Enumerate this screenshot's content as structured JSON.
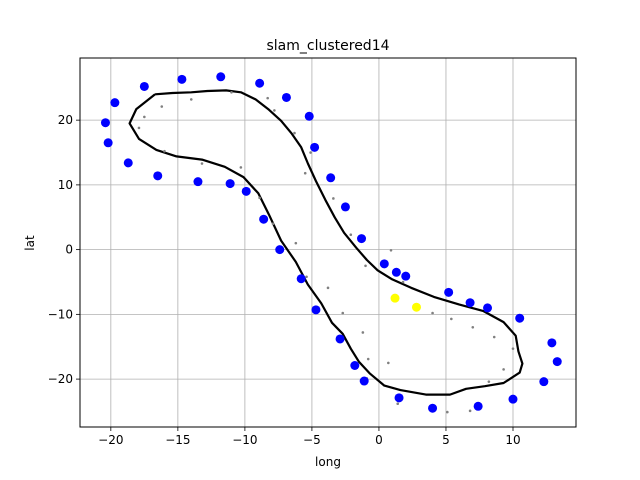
{
  "chart_data": {
    "type": "scatter",
    "title": "slam_clustered14",
    "xlabel": "long",
    "ylabel": "lat",
    "xlim": [
      -22.3,
      14.7
    ],
    "ylim": [
      -27.4,
      29.6
    ],
    "xticks": [
      -20,
      -15,
      -10,
      -5,
      0,
      5,
      10
    ],
    "yticks": [
      -20,
      -10,
      0,
      10,
      20
    ],
    "grid": true,
    "colors": {
      "landmarks": "#0000ff",
      "highlighted": "#ffff00",
      "trajectory": "#000000",
      "estimate_points": "#808080",
      "grid": "#b0b0b0"
    },
    "landmarks": [
      [
        -20.4,
        19.6
      ],
      [
        -20.2,
        16.5
      ],
      [
        -19.7,
        22.7
      ],
      [
        -18.7,
        13.4
      ],
      [
        -17.5,
        25.2
      ],
      [
        -16.5,
        11.4
      ],
      [
        -14.7,
        26.3
      ],
      [
        -13.5,
        10.5
      ],
      [
        -11.8,
        26.7
      ],
      [
        -11.1,
        10.2
      ],
      [
        -9.9,
        9.0
      ],
      [
        -8.9,
        25.7
      ],
      [
        -8.6,
        4.7
      ],
      [
        -6.9,
        23.5
      ],
      [
        -7.4,
        0.0
      ],
      [
        -5.8,
        -4.5
      ],
      [
        -5.2,
        20.6
      ],
      [
        -4.8,
        15.8
      ],
      [
        -4.7,
        -9.3
      ],
      [
        -3.6,
        11.1
      ],
      [
        -2.9,
        -13.8
      ],
      [
        -2.5,
        6.6
      ],
      [
        -1.8,
        -17.9
      ],
      [
        -1.3,
        1.7
      ],
      [
        -1.1,
        -20.3
      ],
      [
        0.4,
        -2.2
      ],
      [
        1.3,
        -3.5
      ],
      [
        1.5,
        -22.9
      ],
      [
        2.0,
        -4.1
      ],
      [
        4.0,
        -24.5
      ],
      [
        5.2,
        -6.6
      ],
      [
        6.8,
        -8.2
      ],
      [
        7.4,
        -24.2
      ],
      [
        8.1,
        -9.0
      ],
      [
        10.0,
        -23.1
      ],
      [
        10.5,
        -10.6
      ],
      [
        12.3,
        -20.4
      ],
      [
        12.9,
        -14.4
      ],
      [
        13.3,
        -17.3
      ]
    ],
    "highlighted": [
      [
        1.2,
        -7.5
      ],
      [
        2.8,
        -8.9
      ]
    ],
    "estimate_points": [
      [
        -17.9,
        18.8
      ],
      [
        -17.5,
        20.5
      ],
      [
        -16.0,
        15.2
      ],
      [
        -16.2,
        22.1
      ],
      [
        -14.0,
        23.2
      ],
      [
        -13.2,
        13.3
      ],
      [
        -11.0,
        24.3
      ],
      [
        -10.3,
        12.7
      ],
      [
        -8.3,
        23.4
      ],
      [
        -8.9,
        8.0
      ],
      [
        -7.8,
        21.5
      ],
      [
        -7.9,
        4.0
      ],
      [
        -6.3,
        18.0
      ],
      [
        -6.2,
        1.0
      ],
      [
        -5.5,
        11.8
      ],
      [
        -5.4,
        -4.2
      ],
      [
        -5.1,
        15.0
      ],
      [
        -3.8,
        -5.9
      ],
      [
        -3.4,
        7.9
      ],
      [
        -2.7,
        -9.8
      ],
      [
        -2.1,
        2.3
      ],
      [
        -1.2,
        -12.8
      ],
      [
        -0.8,
        -16.9
      ],
      [
        -1.0,
        -2.5
      ],
      [
        -0.9,
        -19.9
      ],
      [
        0.7,
        -17.5
      ],
      [
        0.9,
        -0.1
      ],
      [
        1.4,
        -23.8
      ],
      [
        1.8,
        -5.0
      ],
      [
        5.1,
        -25.1
      ],
      [
        4.0,
        -9.8
      ],
      [
        5.4,
        -10.7
      ],
      [
        6.8,
        -24.9
      ],
      [
        7.0,
        -12.0
      ],
      [
        8.2,
        -20.4
      ],
      [
        8.6,
        -13.5
      ],
      [
        9.3,
        -18.5
      ],
      [
        10.0,
        -15.3
      ]
    ],
    "trajectory": [
      [
        -16.7,
        24.0
      ],
      [
        -15.4,
        24.2
      ],
      [
        -14.0,
        24.3
      ],
      [
        -12.8,
        24.5
      ],
      [
        -11.4,
        24.6
      ],
      [
        -10.3,
        24.3
      ],
      [
        -9.2,
        23.2
      ],
      [
        -8.2,
        21.6
      ],
      [
        -7.3,
        19.9
      ],
      [
        -6.5,
        17.9
      ],
      [
        -5.8,
        15.8
      ],
      [
        -5.3,
        13.3
      ],
      [
        -4.7,
        10.6
      ],
      [
        -4.0,
        7.7
      ],
      [
        -3.3,
        5.0
      ],
      [
        -2.6,
        2.6
      ],
      [
        -1.7,
        0.3
      ],
      [
        -0.9,
        -1.6
      ],
      [
        -0.1,
        -3.2
      ],
      [
        1.0,
        -4.6
      ],
      [
        2.4,
        -5.9
      ],
      [
        4.1,
        -7.3
      ],
      [
        6.0,
        -8.5
      ],
      [
        7.8,
        -9.5
      ],
      [
        9.3,
        -11.2
      ],
      [
        10.2,
        -13.3
      ],
      [
        10.4,
        -15.7
      ],
      [
        10.7,
        -17.6
      ],
      [
        10.5,
        -19.0
      ],
      [
        9.3,
        -20.6
      ],
      [
        7.9,
        -21.1
      ],
      [
        6.5,
        -21.5
      ],
      [
        5.3,
        -22.4
      ],
      [
        3.5,
        -22.4
      ],
      [
        1.6,
        -21.7
      ],
      [
        0.4,
        -21.0
      ],
      [
        -0.7,
        -19.1
      ],
      [
        -1.5,
        -17.3
      ],
      [
        -2.1,
        -15.3
      ],
      [
        -2.7,
        -13.0
      ],
      [
        -3.5,
        -11.3
      ],
      [
        -4.3,
        -8.3
      ],
      [
        -5.3,
        -5.4
      ],
      [
        -6.2,
        -1.9
      ],
      [
        -7.3,
        1.4
      ],
      [
        -8.2,
        5.4
      ],
      [
        -9.0,
        8.7
      ],
      [
        -10.1,
        11.2
      ],
      [
        -11.5,
        12.8
      ],
      [
        -13.2,
        13.9
      ],
      [
        -15.1,
        14.4
      ],
      [
        -16.6,
        15.4
      ],
      [
        -17.9,
        17.1
      ],
      [
        -18.6,
        19.5
      ],
      [
        -18.1,
        21.7
      ],
      [
        -16.7,
        24.0
      ]
    ]
  }
}
